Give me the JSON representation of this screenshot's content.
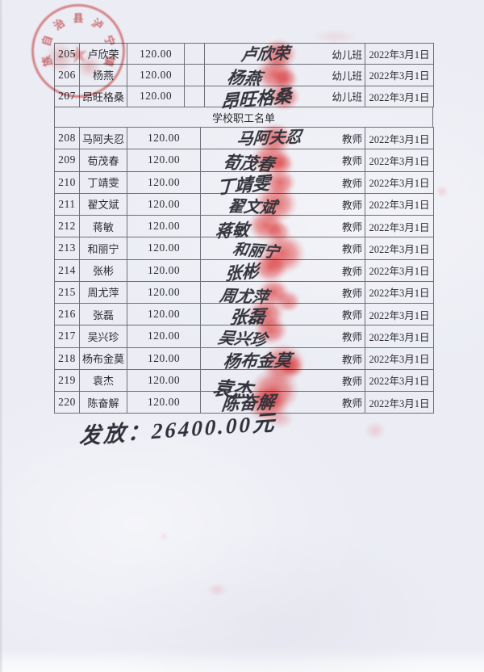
{
  "document": {
    "section_header": "学校职工名单",
    "total_note": "发放：26400.00元",
    "stamp": {
      "arc_text": "族自治县泸宁镇",
      "color": "#d54646"
    },
    "kindergarten_rows": [
      {
        "num": "205",
        "name": "卢欣荣",
        "amount": "120.00",
        "signature": "卢欣荣",
        "role": "幼儿班",
        "date": "2022年3月1日"
      },
      {
        "num": "206",
        "name": "杨燕",
        "amount": "120.00",
        "signature": "杨燕",
        "role": "幼儿班",
        "date": "2022年3月1日"
      },
      {
        "num": "207",
        "name": "昂旺格桑",
        "amount": "120.00",
        "signature": "昂旺格桑",
        "role": "幼儿班",
        "date": "2022年3月1日"
      }
    ],
    "staff_rows": [
      {
        "num": "208",
        "name": "马阿夫忍",
        "amount": "120.00",
        "signature": "马阿夫忍",
        "role": "教师",
        "date": "2022年3月1日"
      },
      {
        "num": "209",
        "name": "荀茂春",
        "amount": "120.00",
        "signature": "荀茂春",
        "role": "教师",
        "date": "2022年3月1日"
      },
      {
        "num": "210",
        "name": "丁靖雯",
        "amount": "120.00",
        "signature": "丁靖雯",
        "role": "教师",
        "date": "2022年3月1日"
      },
      {
        "num": "211",
        "name": "翟文斌",
        "amount": "120.00",
        "signature": "翟文斌",
        "role": "教师",
        "date": "2022年3月1日"
      },
      {
        "num": "212",
        "name": "蒋敏",
        "amount": "120.00",
        "signature": "蒋敏",
        "role": "教师",
        "date": "2022年3月1日"
      },
      {
        "num": "213",
        "name": "和丽宁",
        "amount": "120.00",
        "signature": "和丽宁",
        "role": "教师",
        "date": "2022年3月1日"
      },
      {
        "num": "214",
        "name": "张彬",
        "amount": "120.00",
        "signature": "张彬",
        "role": "教师",
        "date": "2022年3月1日"
      },
      {
        "num": "215",
        "name": "周尤萍",
        "amount": "120.00",
        "signature": "周尤萍",
        "role": "教师",
        "date": "2022年3月1日"
      },
      {
        "num": "216",
        "name": "张磊",
        "amount": "120.00",
        "signature": "张磊",
        "role": "教师",
        "date": "2022年3月1日"
      },
      {
        "num": "217",
        "name": "吴兴珍",
        "amount": "120.00",
        "signature": "吴兴珍",
        "role": "教师",
        "date": "2022年3月1日"
      },
      {
        "num": "218",
        "name": "杨布金莫",
        "amount": "120.00",
        "signature": "杨布金莫",
        "role": "教师",
        "date": "2022年3月1日"
      },
      {
        "num": "219",
        "name": "袁杰",
        "amount": "120.00",
        "signature": "袁杰",
        "role": "教师",
        "date": "2022年3月1日"
      },
      {
        "num": "220",
        "name": "陈奋解",
        "amount": "120.00",
        "signature": "陈奋解",
        "role": "教师",
        "date": "2022年3月1日"
      }
    ],
    "colors": {
      "paper": "#ecedf4",
      "grid_line": "#6f6f78",
      "ink_text": "#2b2b31",
      "stamp_red": "#d54646",
      "fingerprint_red": "#f05555"
    }
  }
}
